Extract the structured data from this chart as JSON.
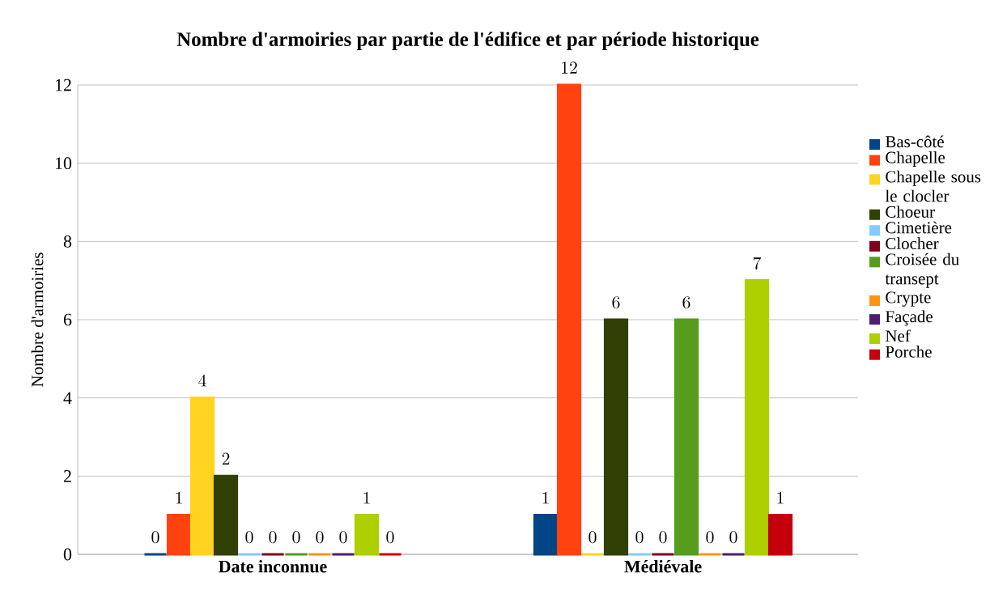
{
  "chart_data": {
    "type": "bar",
    "title": "Nombre d'armoiries par partie de l'édifice et par période historique",
    "ylabel": "Nombre d'armoiries",
    "categories": [
      "Date inconnue",
      "Médiévale"
    ],
    "series": [
      {
        "name": "Bas-côté",
        "color": "#004586",
        "values": [
          0,
          1
        ]
      },
      {
        "name": "Chapelle",
        "color": "#ff420e",
        "values": [
          1,
          12
        ]
      },
      {
        "name": "Chapelle sous le clocler",
        "color": "#ffd320",
        "values": [
          4,
          0
        ]
      },
      {
        "name": "Choeur",
        "color": "#314004",
        "values": [
          2,
          6
        ]
      },
      {
        "name": "Cimetière",
        "color": "#83caff",
        "values": [
          0,
          0
        ]
      },
      {
        "name": "Clocher",
        "color": "#7e0021",
        "values": [
          0,
          0
        ]
      },
      {
        "name": "Croisée du transept",
        "color": "#579d1c",
        "values": [
          0,
          6
        ]
      },
      {
        "name": "Crypte",
        "color": "#ff950e",
        "values": [
          0,
          0
        ]
      },
      {
        "name": "Façade",
        "color": "#4b1f6f",
        "values": [
          0,
          0
        ]
      },
      {
        "name": "Nef",
        "color": "#aecf00",
        "values": [
          1,
          7
        ]
      },
      {
        "name": "Porche",
        "color": "#c5000b",
        "values": [
          0,
          1
        ]
      }
    ],
    "ylim": [
      0,
      12
    ],
    "yticks": [
      0,
      2,
      4,
      6,
      8,
      10,
      12
    ],
    "grid": "y",
    "legend": "right",
    "data_labels": true
  }
}
